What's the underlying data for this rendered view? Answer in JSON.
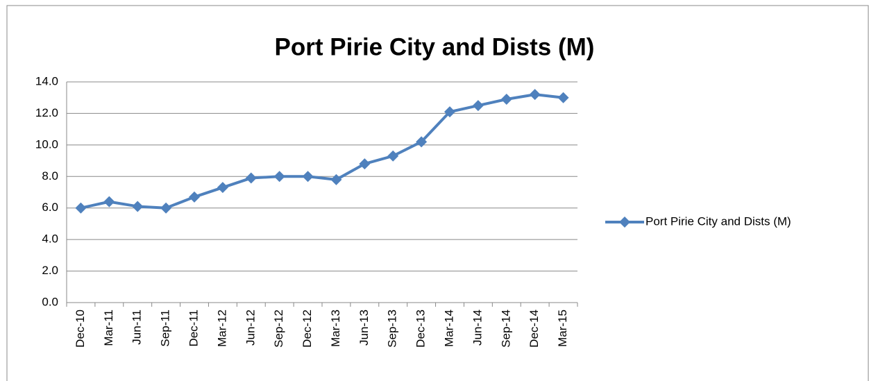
{
  "chart_data": {
    "type": "line",
    "title": "Port Pirie City and Dists (M)",
    "categories": [
      "Dec-10",
      "Mar-11",
      "Jun-11",
      "Sep-11",
      "Dec-11",
      "Mar-12",
      "Jun-12",
      "Sep-12",
      "Dec-12",
      "Mar-13",
      "Jun-13",
      "Sep-13",
      "Dec-13",
      "Mar-14",
      "Jun-14",
      "Sep-14",
      "Dec-14",
      "Mar-15"
    ],
    "series": [
      {
        "name": "Port Pirie City and Dists (M)",
        "color": "#4f81bd",
        "values": [
          6.0,
          6.4,
          6.1,
          6.0,
          6.7,
          7.3,
          7.9,
          8.0,
          8.0,
          7.8,
          8.8,
          9.3,
          10.2,
          12.1,
          12.5,
          12.9,
          13.2,
          13.0
        ]
      }
    ],
    "ylim": [
      0,
      14
    ],
    "yticks": [
      {
        "value": 0,
        "label": "0.0"
      },
      {
        "value": 2,
        "label": "2.0"
      },
      {
        "value": 4,
        "label": "4.0"
      },
      {
        "value": 6,
        "label": "6.0"
      },
      {
        "value": 8,
        "label": "8.0"
      },
      {
        "value": 10,
        "label": "10.0"
      },
      {
        "value": 12,
        "label": "12.0"
      },
      {
        "value": 14,
        "label": "14.0"
      }
    ],
    "grid": true,
    "legend": "right"
  }
}
